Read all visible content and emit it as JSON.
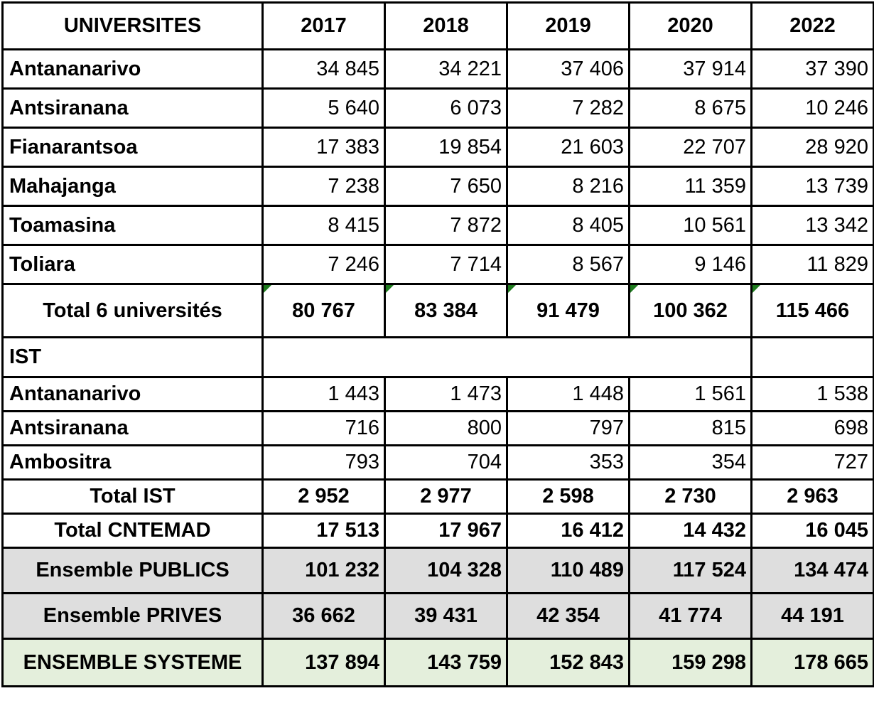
{
  "header": {
    "label": "UNIVERSITES",
    "years": [
      "2017",
      "2018",
      "2019",
      "2020",
      "2022"
    ]
  },
  "universities": [
    {
      "name": "Antananarivo",
      "values": [
        "34 845",
        "34 221",
        "37 406",
        "37 914",
        "37 390"
      ]
    },
    {
      "name": "Antsiranana",
      "values": [
        "5 640",
        "6 073",
        "7 282",
        "8 675",
        "10 246"
      ]
    },
    {
      "name": "Fianarantsoa",
      "values": [
        "17 383",
        "19 854",
        "21 603",
        "22 707",
        "28 920"
      ]
    },
    {
      "name": "Mahajanga",
      "values": [
        "7 238",
        "7 650",
        "8 216",
        "11 359",
        "13 739"
      ]
    },
    {
      "name": "Toamasina",
      "values": [
        "8 415",
        "7 872",
        "8 405",
        "10 561",
        "13 342"
      ]
    },
    {
      "name": "Toliara",
      "values": [
        "7 246",
        "7 714",
        "8 567",
        "9 146",
        "11 829"
      ]
    }
  ],
  "total_universities": {
    "label": "Total 6 universités",
    "values": [
      "80 767",
      "83 384",
      "91 479",
      "100 362",
      "115 466"
    ]
  },
  "ist": {
    "section_label": "IST",
    "rows": [
      {
        "name": "Antananarivo",
        "values": [
          "1 443",
          "1 473",
          "1 448",
          "1 561",
          "1 538"
        ]
      },
      {
        "name": "Antsiranana",
        "values": [
          "716",
          "800",
          "797",
          "815",
          "698"
        ]
      },
      {
        "name": "Ambositra",
        "values": [
          "793",
          "704",
          "353",
          "354",
          "727"
        ]
      }
    ],
    "total": {
      "label": "Total IST",
      "values": [
        "2 952",
        "2 977",
        "2 598",
        "2 730",
        "2 963"
      ]
    }
  },
  "total_cntemad": {
    "label": "Total CNTEMAD",
    "values": [
      "17 513",
      "17 967",
      "16 412",
      "14 432",
      "16 045"
    ]
  },
  "ensemble_publics": {
    "label": "Ensemble PUBLICS",
    "values": [
      "101 232",
      "104 328",
      "110 489",
      "117 524",
      "134 474"
    ]
  },
  "ensemble_prives": {
    "label": "Ensemble PRIVES",
    "values": [
      "36 662",
      "39 431",
      "42 354",
      "41 774",
      "44 191"
    ]
  },
  "ensemble_systeme": {
    "label": "ENSEMBLE SYSTEME",
    "values": [
      "137 894",
      "143 759",
      "152 843",
      "159 298",
      "178 665"
    ]
  },
  "colors": {
    "grey_row": "#dedede",
    "green_row": "#e4efdc",
    "cell_marker": "#1e7b1e"
  }
}
